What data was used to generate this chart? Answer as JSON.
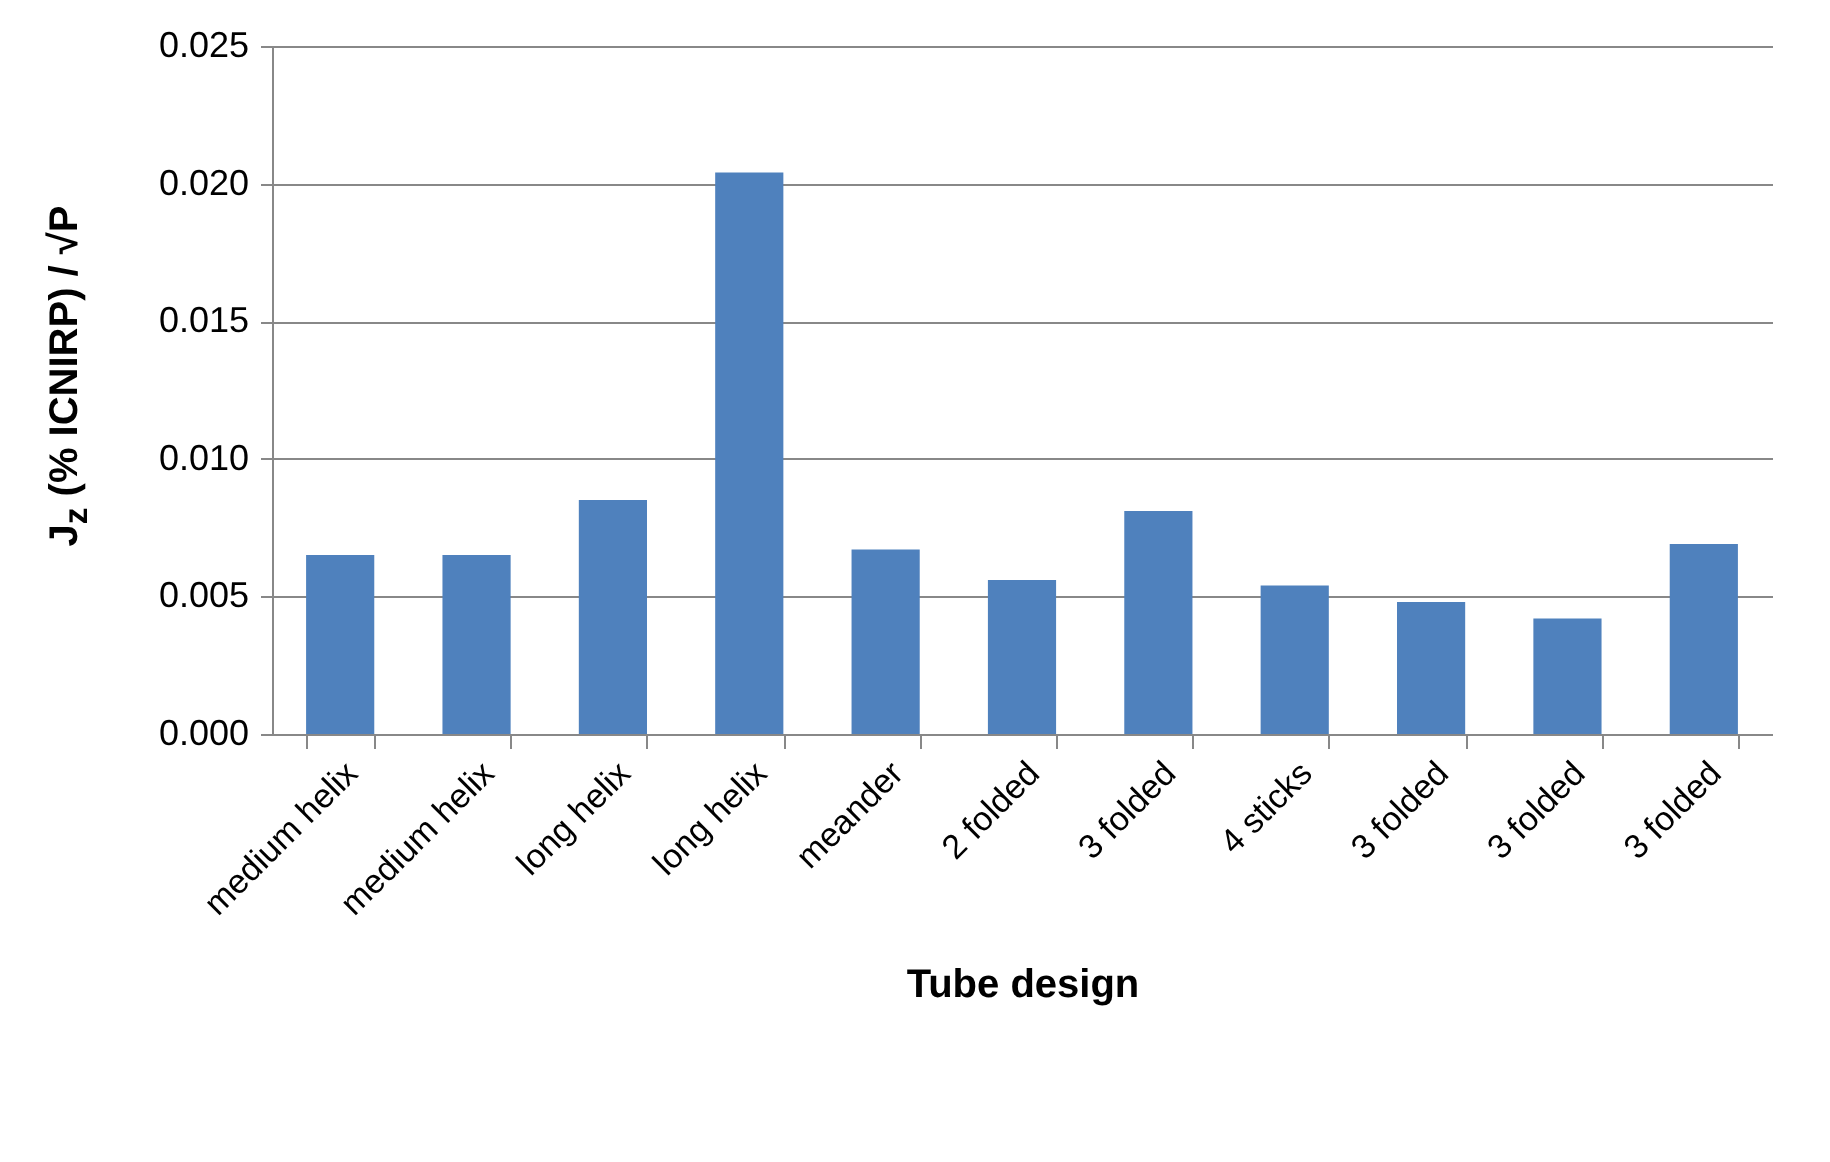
{
  "chart_data": {
    "type": "bar",
    "xlabel": "Tube design",
    "ylabel": "J$_{z}$ (% ICNIRP) / √P",
    "categories": [
      "medium helix",
      "medium helix",
      "long helix",
      "long helix",
      "meander",
      "2 folded",
      "3 folded",
      "4 sticks",
      "3 folded",
      "3 folded",
      "3 folded"
    ],
    "values": [
      0.0065,
      0.0065,
      0.0085,
      0.0204,
      0.0067,
      0.0056,
      0.0081,
      0.0054,
      0.0048,
      0.0042,
      0.0069
    ],
    "color": "#4f81bd",
    "ylim": [
      0,
      0.025
    ],
    "yticks": [
      {
        "value": 0,
        "label": "0.000"
      },
      {
        "value": 0.005,
        "label": "0.005"
      },
      {
        "value": 0.01,
        "label": "0.010"
      },
      {
        "value": 0.015,
        "label": "0.015"
      },
      {
        "value": 0.02,
        "label": "0.020"
      },
      {
        "value": 0.025,
        "label": "0.025"
      }
    ],
    "grid": "y"
  }
}
